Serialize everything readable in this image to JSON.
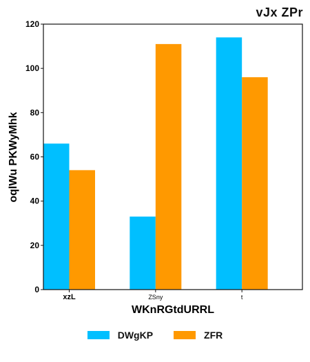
{
  "chart_data": {
    "type": "bar",
    "title": "vJx  ZPr",
    "xlabel": "WKnRGtdURRL",
    "ylabel": "oqlWu PKWyMhk",
    "categories": [
      "xzL",
      "ZSny",
      "t"
    ],
    "series": [
      {
        "name": "DWgKP",
        "values": [
          66,
          33,
          114
        ],
        "color": "#00bfff"
      },
      {
        "name": "ZFR",
        "values": [
          54,
          111,
          96
        ],
        "color": "#ff9900"
      }
    ],
    "ylim": [
      0,
      120
    ],
    "yticks": [
      0,
      20,
      40,
      60,
      80,
      100,
      120
    ],
    "grid": false,
    "legend_position": "bottom"
  }
}
